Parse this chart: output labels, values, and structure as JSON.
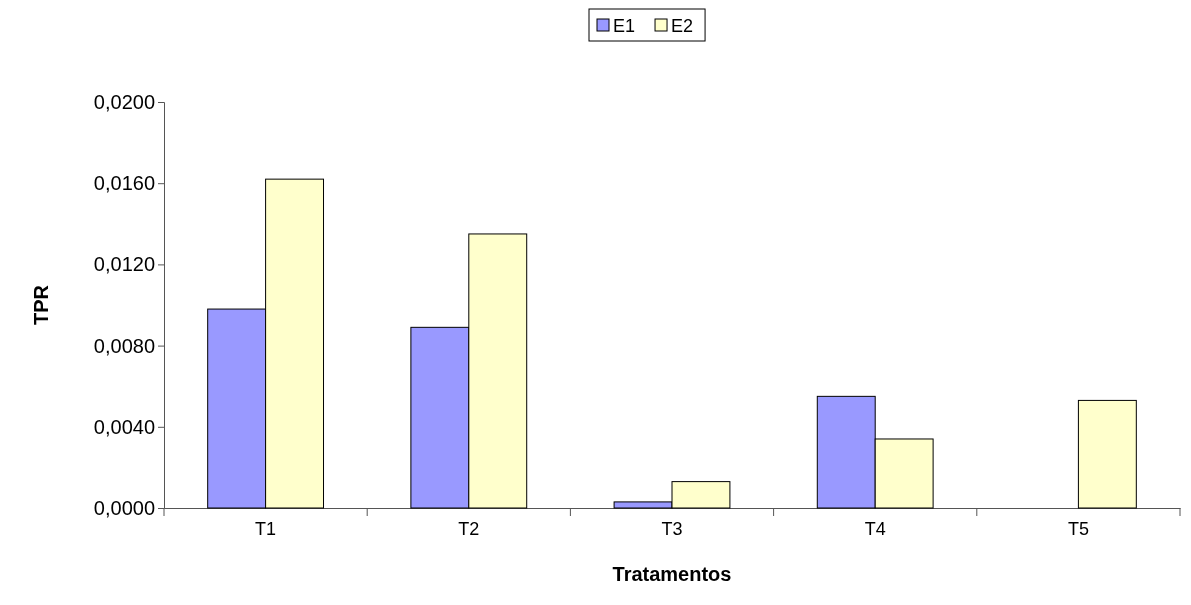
{
  "chart_data": {
    "type": "bar",
    "xlabel": "Tratamentos",
    "ylabel": "TPR",
    "categories": [
      "T1",
      "T2",
      "T3",
      "T4",
      "T5"
    ],
    "series": [
      {
        "name": "E1",
        "color": "#9999ff",
        "values": [
          0.0098,
          0.0089,
          0.0003,
          0.0055,
          0
        ]
      },
      {
        "name": "E2",
        "color": "#ffffcc",
        "values": [
          0.0162,
          0.0135,
          0.0013,
          0.0034,
          0.0053
        ]
      }
    ],
    "ylim": [
      0,
      0.02
    ],
    "yticks": [
      {
        "value": 0,
        "label": "0,0000"
      },
      {
        "value": 0.004,
        "label": "0,0040"
      },
      {
        "value": 0.008,
        "label": "0,0080"
      },
      {
        "value": 0.012,
        "label": "0,0120"
      },
      {
        "value": 0.016,
        "label": "0,0160"
      },
      {
        "value": 0.02,
        "label": "0,0200"
      }
    ],
    "legend": "top",
    "grid": false
  }
}
